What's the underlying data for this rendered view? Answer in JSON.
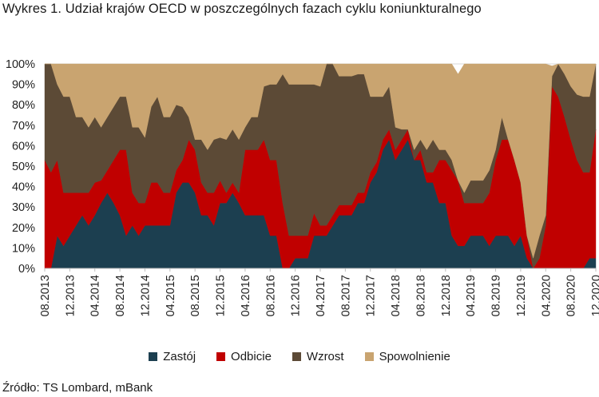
{
  "title": "Wykres 1. Udział krajów OECD w poszczególnych fazach cyklu koniunkturalnego",
  "source": "Źródło: TS Lombard, mBank",
  "chart_data": {
    "type": "area",
    "stacked": true,
    "ylim": [
      0,
      100
    ],
    "ytick_labels": [
      "0%",
      "10%",
      "20%",
      "30%",
      "40%",
      "50%",
      "60%",
      "70%",
      "80%",
      "90%",
      "100%"
    ],
    "xtick_labels": [
      "08.2013",
      "12.2013",
      "04.2014",
      "08.2014",
      "12.2014",
      "04.2015",
      "08.2015",
      "12.2015",
      "04.2016",
      "08.2016",
      "12.2016",
      "04.2017",
      "08.2017",
      "12.2017",
      "04.2018",
      "08.2018",
      "12.2018",
      "04.2019",
      "08.2019",
      "12.2019",
      "04.2020",
      "08.2020",
      "12.2020"
    ],
    "grid": true,
    "legend_position": "bottom",
    "x_start": "08.2013",
    "x_end": "12.2020",
    "series": [
      {
        "name": "Zastój",
        "color": "#1c3f50",
        "values": [
          0,
          0,
          16,
          11,
          16,
          21,
          26,
          21,
          26,
          32,
          37,
          32,
          26,
          16,
          21,
          16,
          21,
          21,
          21,
          21,
          21,
          37,
          42,
          42,
          37,
          26,
          26,
          21,
          32,
          32,
          37,
          32,
          26,
          26,
          26,
          26,
          16,
          16,
          0,
          0,
          5,
          5,
          5,
          16,
          16,
          16,
          21,
          26,
          26,
          26,
          32,
          32,
          42,
          47,
          58,
          63,
          53,
          58,
          63,
          53,
          53,
          42,
          42,
          32,
          32,
          16,
          11,
          11,
          16,
          16,
          16,
          11,
          16,
          16,
          16,
          11,
          16,
          5,
          0,
          0,
          0,
          0,
          0,
          0,
          0,
          0,
          0,
          5,
          5
        ]
      },
      {
        "name": "Odbicie",
        "color": "#c00000",
        "values": [
          53,
          47,
          37,
          26,
          21,
          16,
          11,
          16,
          16,
          11,
          11,
          21,
          32,
          42,
          16,
          16,
          11,
          21,
          21,
          16,
          16,
          11,
          11,
          21,
          21,
          16,
          11,
          16,
          11,
          5,
          5,
          5,
          32,
          32,
          32,
          37,
          37,
          37,
          32,
          16,
          11,
          11,
          11,
          11,
          5,
          5,
          5,
          5,
          5,
          5,
          5,
          5,
          5,
          5,
          5,
          5,
          5,
          5,
          5,
          0,
          5,
          5,
          5,
          21,
          21,
          32,
          32,
          21,
          16,
          16,
          16,
          26,
          37,
          47,
          47,
          42,
          26,
          11,
          0,
          5,
          21,
          89,
          84,
          74,
          63,
          53,
          47,
          42,
          63
        ]
      },
      {
        "name": "Wzrost",
        "color": "#5c4a36",
        "values": [
          47,
          53,
          37,
          47,
          47,
          37,
          37,
          32,
          32,
          26,
          26,
          26,
          26,
          26,
          32,
          37,
          32,
          37,
          42,
          37,
          37,
          32,
          26,
          11,
          5,
          21,
          21,
          26,
          21,
          26,
          26,
          26,
          11,
          16,
          16,
          26,
          37,
          37,
          63,
          74,
          74,
          74,
          74,
          63,
          68,
          79,
          74,
          63,
          63,
          63,
          58,
          58,
          37,
          32,
          21,
          21,
          11,
          5,
          0,
          5,
          5,
          11,
          16,
          5,
          5,
          5,
          0,
          5,
          11,
          11,
          11,
          11,
          5,
          11,
          0,
          0,
          0,
          0,
          5,
          11,
          5,
          5,
          16,
          21,
          26,
          32,
          37,
          37,
          32
        ]
      },
      {
        "name": "Spowolnienie",
        "color": "#c9a470",
        "values": [
          0,
          0,
          10,
          16,
          16,
          26,
          26,
          31,
          26,
          31,
          26,
          21,
          16,
          16,
          31,
          31,
          36,
          21,
          16,
          26,
          26,
          21,
          21,
          26,
          37,
          37,
          42,
          37,
          36,
          37,
          32,
          37,
          31,
          26,
          26,
          11,
          10,
          10,
          5,
          10,
          10,
          10,
          10,
          10,
          11,
          0,
          0,
          6,
          6,
          6,
          5,
          5,
          16,
          16,
          16,
          11,
          31,
          32,
          32,
          42,
          37,
          42,
          37,
          42,
          42,
          47,
          52,
          63,
          57,
          57,
          57,
          52,
          42,
          26,
          37,
          47,
          58,
          84,
          95,
          84,
          74,
          5,
          0,
          5,
          11,
          15,
          16,
          16,
          0
        ]
      }
    ]
  }
}
